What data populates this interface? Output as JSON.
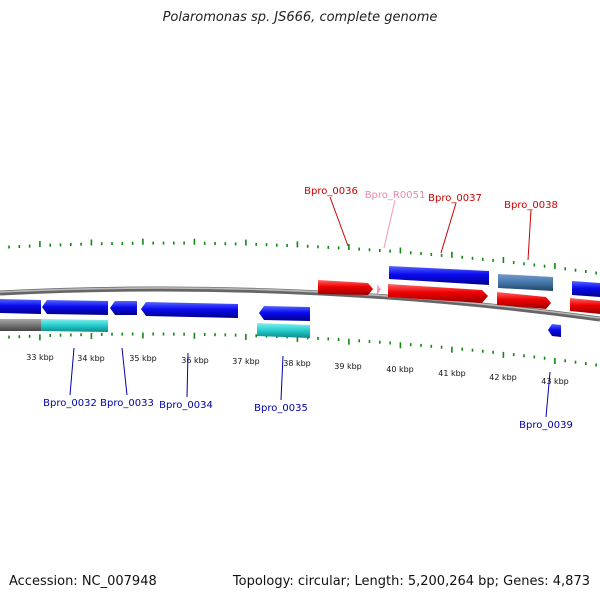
{
  "title": "Polaromonas sp. JS666, complete genome",
  "footer": {
    "accession": "Accession: NC_007948",
    "stats": "Topology: circular; Length: 5,200,264 bp; Genes: 4,873"
  },
  "scale_labels": [
    "33 kbp",
    "34 kbp",
    "35 kbp",
    "36 kbp",
    "37 kbp",
    "38 kbp",
    "39 kbp",
    "40 kbp",
    "41 kbp",
    "42 kbp",
    "43 kbp"
  ],
  "genes_top": [
    {
      "label": "Bpro_0036",
      "color": "#cc0000"
    },
    {
      "label": "Bpro_R0051",
      "color": "#ee88aa"
    },
    {
      "label": "Bpro_0037",
      "color": "#cc0000"
    },
    {
      "label": "Bpro_0038",
      "color": "#cc0000"
    }
  ],
  "genes_bottom": [
    {
      "label": "Bpro_0032",
      "color": "#0000aa"
    },
    {
      "label": "Bpro_0033",
      "color": "#0000aa"
    },
    {
      "label": "Bpro_0034",
      "color": "#0000aa"
    },
    {
      "label": "Bpro_0035",
      "color": "#0000aa"
    },
    {
      "label": "Bpro_0039",
      "color": "#0000aa"
    }
  ],
  "colors": {
    "tick": "#118811",
    "backbone": "#888888",
    "forward_cds": "#ee0000",
    "reverse_cds": "#0000ee",
    "trna": "#ff88bb",
    "rna_cyan": "#33cccc",
    "steel_blue": "#4477aa",
    "gray_feature": "#777777"
  }
}
